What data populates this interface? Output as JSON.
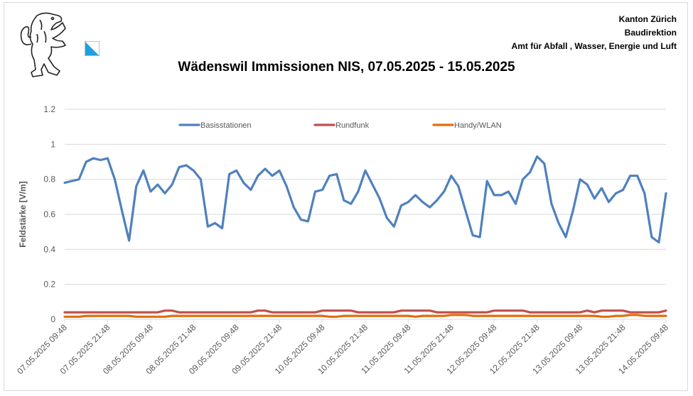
{
  "header": {
    "org_lines": [
      "Kanton Zürich",
      "Baudirektion",
      "Amt für Abfall , Wasser, Energie und Luft"
    ],
    "logo_icon": "zurich-lion-icon",
    "flag_icon": "zurich-flag-icon"
  },
  "chart_data": {
    "type": "line",
    "title": "Wädenswil Immissionen NIS, 07.05.2025 - 15.05.2025",
    "xlabel": "",
    "ylabel": "Feldstärke [V/m]",
    "ylim": [
      0,
      1.2
    ],
    "yticks": [
      "0",
      "0.2",
      "0.4",
      "0.6",
      "0.8",
      "1",
      "1.2"
    ],
    "xtick_labels": [
      "07.05.2025 09:48",
      "07.05.2025 21:48",
      "08.05.2025 09:48",
      "08.05.2025 21:48",
      "09.05.2025 09:48",
      "09.05.2025 21:48",
      "10.05.2025 09:48",
      "10.05.2025 21:48",
      "11.05.2025 09:48",
      "11.05.2025 21:48",
      "12.05.2025 09:48",
      "12.05.2025 21:48",
      "13.05.2025 09:48",
      "13.05.2025 21:48",
      "14.05.2025 09:48"
    ],
    "grid": true,
    "legend_position": "top",
    "x": [
      "07.05.2025 09:48",
      "07.05.2025 11:48",
      "07.05.2025 13:48",
      "07.05.2025 15:48",
      "07.05.2025 17:48",
      "07.05.2025 19:48",
      "07.05.2025 21:48",
      "07.05.2025 23:48",
      "08.05.2025 01:48",
      "08.05.2025 03:48",
      "08.05.2025 05:48",
      "08.05.2025 07:48",
      "08.05.2025 09:48",
      "08.05.2025 11:48",
      "08.05.2025 13:48",
      "08.05.2025 15:48",
      "08.05.2025 17:48",
      "08.05.2025 19:48",
      "08.05.2025 21:48",
      "08.05.2025 23:48",
      "09.05.2025 01:48",
      "09.05.2025 03:48",
      "09.05.2025 05:48",
      "09.05.2025 07:48",
      "09.05.2025 09:48",
      "09.05.2025 11:48",
      "09.05.2025 13:48",
      "09.05.2025 15:48",
      "09.05.2025 17:48",
      "09.05.2025 19:48",
      "09.05.2025 21:48",
      "09.05.2025 23:48",
      "10.05.2025 01:48",
      "10.05.2025 03:48",
      "10.05.2025 05:48",
      "10.05.2025 07:48",
      "10.05.2025 09:48",
      "10.05.2025 11:48",
      "10.05.2025 13:48",
      "10.05.2025 15:48",
      "10.05.2025 17:48",
      "10.05.2025 19:48",
      "10.05.2025 21:48",
      "10.05.2025 23:48",
      "11.05.2025 01:48",
      "11.05.2025 03:48",
      "11.05.2025 05:48",
      "11.05.2025 07:48",
      "11.05.2025 09:48",
      "11.05.2025 11:48",
      "11.05.2025 13:48",
      "11.05.2025 15:48",
      "11.05.2025 17:48",
      "11.05.2025 19:48",
      "11.05.2025 21:48",
      "11.05.2025 23:48",
      "12.05.2025 01:48",
      "12.05.2025 03:48",
      "12.05.2025 05:48",
      "12.05.2025 07:48",
      "12.05.2025 09:48",
      "12.05.2025 11:48",
      "12.05.2025 13:48",
      "12.05.2025 15:48",
      "12.05.2025 17:48",
      "12.05.2025 19:48",
      "12.05.2025 21:48",
      "12.05.2025 23:48",
      "13.05.2025 01:48",
      "13.05.2025 03:48",
      "13.05.2025 05:48",
      "13.05.2025 07:48",
      "13.05.2025 09:48",
      "13.05.2025 11:48",
      "13.05.2025 13:48",
      "13.05.2025 15:48",
      "13.05.2025 17:48",
      "13.05.2025 19:48",
      "13.05.2025 21:48",
      "13.05.2025 23:48",
      "14.05.2025 01:48",
      "14.05.2025 03:48",
      "14.05.2025 05:48",
      "14.05.2025 07:48",
      "14.05.2025 09:48"
    ],
    "series": [
      {
        "name": "Basisstationen",
        "color": "#4f81bd",
        "values": [
          0.78,
          0.79,
          0.8,
          0.9,
          0.92,
          0.91,
          0.92,
          0.8,
          0.62,
          0.45,
          0.76,
          0.85,
          0.73,
          0.77,
          0.72,
          0.77,
          0.87,
          0.88,
          0.85,
          0.8,
          0.53,
          0.55,
          0.52,
          0.83,
          0.85,
          0.78,
          0.74,
          0.82,
          0.86,
          0.82,
          0.85,
          0.76,
          0.64,
          0.57,
          0.56,
          0.73,
          0.74,
          0.82,
          0.83,
          0.68,
          0.66,
          0.73,
          0.85,
          0.77,
          0.69,
          0.58,
          0.53,
          0.65,
          0.67,
          0.71,
          0.67,
          0.64,
          0.68,
          0.73,
          0.82,
          0.76,
          0.62,
          0.48,
          0.47,
          0.79,
          0.71,
          0.71,
          0.73,
          0.66,
          0.8,
          0.84,
          0.93,
          0.89,
          0.66,
          0.55,
          0.47,
          0.62,
          0.8,
          0.77,
          0.69,
          0.75,
          0.67,
          0.72,
          0.74,
          0.82,
          0.82,
          0.72,
          0.47,
          0.44,
          0.72
        ]
      },
      {
        "name": "Rundfunk",
        "color": "#c0504d",
        "values": [
          0.04,
          0.04,
          0.04,
          0.04,
          0.04,
          0.04,
          0.04,
          0.04,
          0.04,
          0.04,
          0.04,
          0.04,
          0.04,
          0.04,
          0.05,
          0.05,
          0.04,
          0.04,
          0.04,
          0.04,
          0.04,
          0.04,
          0.04,
          0.04,
          0.04,
          0.04,
          0.04,
          0.05,
          0.05,
          0.04,
          0.04,
          0.04,
          0.04,
          0.04,
          0.04,
          0.04,
          0.05,
          0.05,
          0.05,
          0.05,
          0.05,
          0.04,
          0.04,
          0.04,
          0.04,
          0.04,
          0.04,
          0.05,
          0.05,
          0.05,
          0.05,
          0.05,
          0.04,
          0.04,
          0.04,
          0.04,
          0.04,
          0.04,
          0.04,
          0.04,
          0.05,
          0.05,
          0.05,
          0.05,
          0.05,
          0.04,
          0.04,
          0.04,
          0.04,
          0.04,
          0.04,
          0.04,
          0.04,
          0.05,
          0.04,
          0.05,
          0.05,
          0.05,
          0.05,
          0.04,
          0.04,
          0.04,
          0.04,
          0.04,
          0.05
        ]
      },
      {
        "name": "Handy/WLAN",
        "color": "#e46c0a",
        "values": [
          0.015,
          0.015,
          0.015,
          0.02,
          0.02,
          0.02,
          0.02,
          0.02,
          0.02,
          0.02,
          0.015,
          0.015,
          0.015,
          0.015,
          0.015,
          0.02,
          0.02,
          0.02,
          0.02,
          0.02,
          0.02,
          0.02,
          0.02,
          0.02,
          0.02,
          0.02,
          0.02,
          0.02,
          0.02,
          0.02,
          0.02,
          0.02,
          0.02,
          0.02,
          0.02,
          0.02,
          0.02,
          0.015,
          0.015,
          0.02,
          0.02,
          0.02,
          0.02,
          0.02,
          0.02,
          0.02,
          0.02,
          0.02,
          0.02,
          0.015,
          0.02,
          0.02,
          0.02,
          0.02,
          0.025,
          0.025,
          0.025,
          0.02,
          0.02,
          0.02,
          0.02,
          0.02,
          0.02,
          0.02,
          0.02,
          0.02,
          0.02,
          0.02,
          0.02,
          0.02,
          0.02,
          0.02,
          0.02,
          0.02,
          0.02,
          0.015,
          0.015,
          0.02,
          0.02,
          0.025,
          0.025,
          0.02,
          0.02,
          0.02,
          0.02
        ]
      }
    ]
  }
}
